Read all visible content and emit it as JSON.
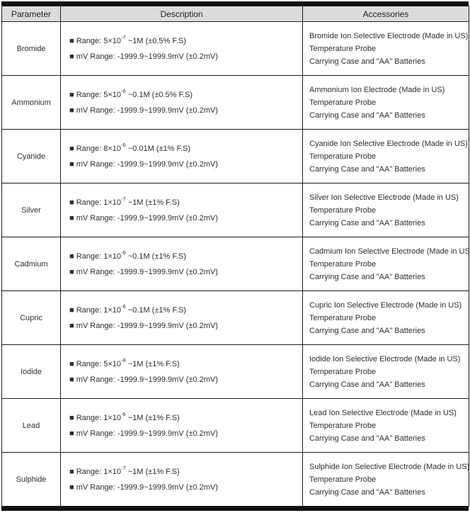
{
  "colors": {
    "header_bg": "#dcdcdc",
    "border": "#1b1b1b",
    "text": "#2d2d2d"
  },
  "table": {
    "headers": [
      "Parameter",
      "Description",
      "Accessories"
    ],
    "rows": [
      {
        "parameter": "Bromide",
        "range_prefix": "■ Range: 5×10",
        "range_exp": "-7",
        "range_suffix": " ~1M (±0.5% F.S)",
        "mv_range": "■ mV Range: -1999.9~1999.9mV (±0.2mV)",
        "accessories": [
          "Bromide Ion Selective Electrode (Made in US)",
          "Temperature Probe",
          "Carrying Case and \"AA\" Batteries"
        ]
      },
      {
        "parameter": "Ammonium",
        "range_prefix": "■ Range: 5×10",
        "range_exp": "-6",
        "range_suffix": " ~0.1M (±0.5% F.S)",
        "mv_range": "■ mV Range: -1999.9~1999.9mV (±0.2mV)",
        "accessories": [
          "Ammonium Ion Electrode (Made in US)",
          "Temperature Probe",
          "Carrying Case and \"AA\" Batteries"
        ]
      },
      {
        "parameter": "Cyanide",
        "range_prefix": "■ Range: 8×10",
        "range_exp": "-6",
        "range_suffix": " ~0.01M (±1% F.S)",
        "mv_range": "■ mV Range: -1999.9~1999.9mV (±0.2mV)",
        "accessories": [
          "Cyanide Ion Selective Electrode (Made in US)",
          "Temperature Probe",
          "Carrying Case and \"AA\" Batteries"
        ]
      },
      {
        "parameter": "Silver",
        "range_prefix": "■ Range: 1×10",
        "range_exp": "-7",
        "range_suffix": " ~1M (±1% F.S)",
        "mv_range": "■ mV Range: -1999.9~1999.9mV (±0.2mV)",
        "accessories": [
          "Silver Ion Selective Electrode (Made in US)",
          "Temperature Probe",
          "Carrying Case and \"AA\" Batteries"
        ]
      },
      {
        "parameter": "Cadmium",
        "range_prefix": "■ Range: 1×10",
        "range_exp": "-6",
        "range_suffix": " ~0.1M (±1% F.S)",
        "mv_range": "■ mV Range: -1999.9~1999.9mV (±0.2mV)",
        "accessories": [
          "Cadmium Ion Selective Electrode (Made in US)",
          "Temperature Probe",
          "Carrying Case and \"AA\" Batteries"
        ]
      },
      {
        "parameter": "Cupric",
        "range_prefix": "■ Range: 1×10",
        "range_exp": "-6",
        "range_suffix": " ~0.1M (±1% F.S)",
        "mv_range": "■ mV Range: -1999.9~1999.9mV (±0.2mV)",
        "accessories": [
          "Cupric Ion Selective Electrode (Made in US)",
          "Temperature Probe",
          "Carrying Case and \"AA\" Batteries"
        ]
      },
      {
        "parameter": "Iodide",
        "range_prefix": "■ Range: 5×10",
        "range_exp": "-8",
        "range_suffix": " ~1M (±1% F.S)",
        "mv_range": "■ mV Range: -1999.9~1999.9mV (±0.2mV)",
        "accessories": [
          "Iodide Ion Selective Electrode (Made in US)",
          "Temperature Probe",
          "Carrying Case and \"AA\" Batteries"
        ]
      },
      {
        "parameter": "Lead",
        "range_prefix": "■ Range: 1×10",
        "range_exp": "-6",
        "range_suffix": " ~1M (±1% F.S)",
        "mv_range": "■ mV Range: -1999.9~1999.9mV (±0.2mV)",
        "accessories": [
          "Lead Ion Selective Electrode (Made in US)",
          "Temperature Probe",
          "Carrying Case and \"AA\" Batteries"
        ]
      },
      {
        "parameter": "Sulphide",
        "range_prefix": "■ Range: 1×10",
        "range_exp": "-7",
        "range_suffix": " ~1M (±1% F.S)",
        "mv_range": "■ mV Range: -1999.9~1999.9mV (±0.2mV)",
        "accessories": [
          "Sulphide Ion Selective Electrode (Made in US)",
          "Temperature Probe",
          "Carrying Case and \"AA\" Batteries"
        ]
      }
    ]
  }
}
